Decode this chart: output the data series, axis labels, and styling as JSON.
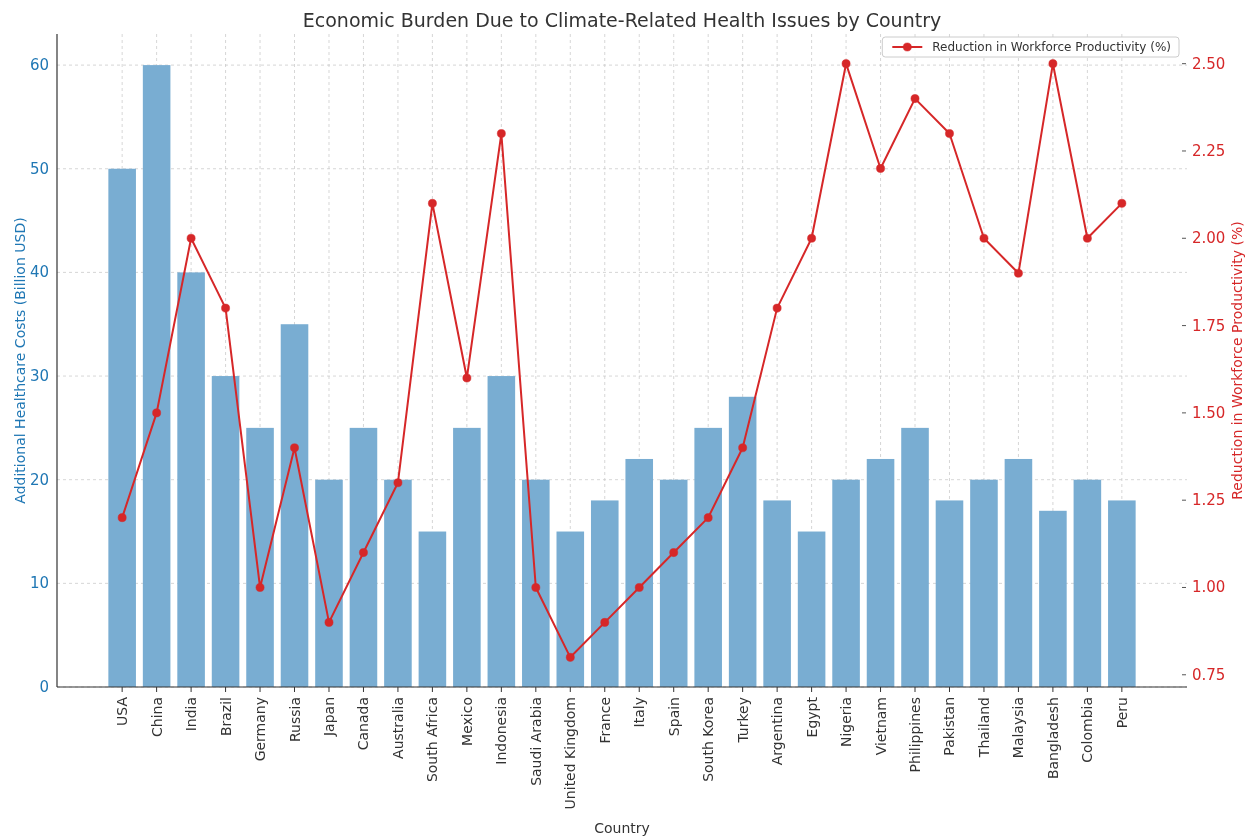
{
  "chart_data": {
    "type": "bar",
    "title": "Economic Burden Due to Climate-Related Health Issues by Country",
    "xlabel": "Country",
    "ylabel": "Additional Healthcare Costs (Billion USD)",
    "y2label": "Reduction in Workforce Productivity (%)",
    "categories": [
      "USA",
      "China",
      "India",
      "Brazil",
      "Germany",
      "Russia",
      "Japan",
      "Canada",
      "Australia",
      "South Africa",
      "Mexico",
      "Indonesia",
      "Saudi Arabia",
      "United Kingdom",
      "France",
      "Italy",
      "Spain",
      "South Korea",
      "Turkey",
      "Argentina",
      "Egypt",
      "Nigeria",
      "Vietnam",
      "Philippines",
      "Pakistan",
      "Thailand",
      "Malaysia",
      "Bangladesh",
      "Colombia",
      "Peru"
    ],
    "series": [
      {
        "color": "#79add2",
        "values": [
          50,
          60,
          40,
          30,
          25,
          35,
          20,
          25,
          20,
          15,
          25,
          30,
          20,
          15,
          18,
          22,
          20,
          25,
          28,
          18,
          15,
          20,
          22,
          25,
          18,
          20,
          22,
          17,
          20,
          18
        ]
      },
      {
        "type": "line",
        "name": "Reduction in Workforce Productivity (%)",
        "color": "#d62728",
        "axis": "y2",
        "values": [
          1.2,
          1.5,
          2.0,
          1.8,
          1.0,
          1.4,
          0.9,
          1.1,
          1.3,
          2.1,
          1.6,
          2.3,
          1.0,
          0.8,
          0.9,
          1.0,
          1.1,
          1.2,
          1.4,
          1.8,
          2.0,
          2.5,
          2.2,
          2.4,
          2.3,
          2.0,
          1.9,
          2.5,
          2.0,
          2.1
        ]
      }
    ],
    "ylim": [
      0,
      63
    ],
    "yticks": [
      0,
      10,
      20,
      30,
      40,
      50,
      60
    ],
    "y2lim": [
      0.715,
      2.585
    ],
    "y2ticks": [
      0.75,
      {
        "value": 1,
        "label": "1.00"
      },
      1.25,
      {
        "value": 1.5,
        "label": "1.50"
      },
      1.75,
      {
        "value": 2,
        "label": "2.00"
      },
      2.25,
      {
        "value": 2.5,
        "label": "2.50"
      }
    ],
    "grid": true,
    "legend": "top right",
    "marker": "circle"
  }
}
